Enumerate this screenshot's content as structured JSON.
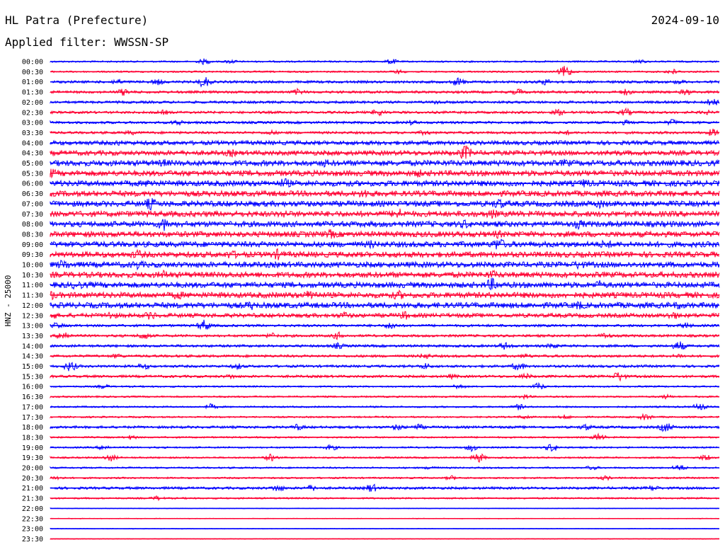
{
  "header": {
    "station": "HL Patra (Prefecture)",
    "date": "2024-09-10",
    "filter_label": "Applied filter: WWSSN-SP"
  },
  "chart_data": {
    "type": "line",
    "title": "HL Patra (Prefecture)",
    "subtitle": "Applied filter: WWSSN-SP",
    "ylabel": "HNZ - 25000",
    "colors": {
      "even_row": "#0000ff",
      "odd_row": "#ff0033"
    },
    "rows": [
      {
        "label": "00:00",
        "level": 1,
        "events": [
          [
            0.23,
            4
          ],
          [
            0.27,
            3
          ],
          [
            0.51,
            4
          ],
          [
            0.88,
            3
          ]
        ]
      },
      {
        "label": "00:30",
        "level": 1,
        "events": [
          [
            0.52,
            3
          ],
          [
            0.77,
            9
          ],
          [
            0.93,
            4
          ]
        ]
      },
      {
        "label": "01:00",
        "level": 2,
        "events": [
          [
            0.1,
            4
          ],
          [
            0.16,
            4
          ],
          [
            0.23,
            8
          ],
          [
            0.61,
            6
          ],
          [
            0.74,
            4
          ],
          [
            0.94,
            3
          ]
        ]
      },
      {
        "label": "01:30",
        "level": 2,
        "events": [
          [
            0.11,
            5
          ],
          [
            0.37,
            4
          ],
          [
            0.7,
            4
          ],
          [
            0.86,
            4
          ],
          [
            0.95,
            4
          ]
        ]
      },
      {
        "label": "02:00",
        "level": 2,
        "events": [
          [
            0.58,
            3
          ],
          [
            0.99,
            6
          ]
        ]
      },
      {
        "label": "02:30",
        "level": 2,
        "events": [
          [
            0.17,
            3
          ],
          [
            0.49,
            5
          ],
          [
            0.76,
            4
          ],
          [
            0.86,
            5
          ],
          [
            0.98,
            3
          ]
        ]
      },
      {
        "label": "03:00",
        "level": 2,
        "events": [
          [
            0.19,
            4
          ],
          [
            0.54,
            3
          ],
          [
            0.86,
            3
          ],
          [
            0.93,
            4
          ]
        ]
      },
      {
        "label": "03:30",
        "level": 2,
        "events": [
          [
            0.12,
            3
          ],
          [
            0.33,
            3
          ],
          [
            0.56,
            3
          ],
          [
            0.77,
            3
          ],
          [
            0.99,
            5
          ]
        ]
      },
      {
        "label": "04:00",
        "level": 4,
        "events": [
          [
            0.1,
            3
          ]
        ]
      },
      {
        "label": "04:30",
        "level": 5,
        "events": [
          [
            0.27,
            4
          ],
          [
            0.62,
            10
          ],
          [
            0.84,
            4
          ]
        ]
      },
      {
        "label": "05:00",
        "level": 6,
        "events": [
          [
            0.17,
            4
          ],
          [
            0.41,
            4
          ],
          [
            0.77,
            4
          ]
        ]
      },
      {
        "label": "05:30",
        "level": 6,
        "events": [
          [
            0.0,
            6
          ],
          [
            0.55,
            4
          ]
        ]
      },
      {
        "label": "06:00",
        "level": 6,
        "events": [
          [
            0.15,
            5
          ],
          [
            0.35,
            6
          ],
          [
            0.8,
            5
          ]
        ]
      },
      {
        "label": "06:30",
        "level": 6,
        "events": [
          [
            0.47,
            5
          ]
        ]
      },
      {
        "label": "07:00",
        "level": 6,
        "events": [
          [
            0.15,
            7
          ],
          [
            0.67,
            6
          ],
          [
            0.82,
            5
          ]
        ]
      },
      {
        "label": "07:30",
        "level": 6,
        "events": [
          [
            0.35,
            4
          ],
          [
            0.52,
            7
          ],
          [
            0.66,
            5
          ]
        ]
      },
      {
        "label": "08:00",
        "level": 6,
        "events": [
          [
            0.17,
            8
          ],
          [
            0.62,
            5
          ],
          [
            0.79,
            5
          ]
        ]
      },
      {
        "label": "08:30",
        "level": 6,
        "events": [
          [
            0.42,
            5
          ],
          [
            0.67,
            4
          ]
        ]
      },
      {
        "label": "09:00",
        "level": 6,
        "events": [
          [
            0.48,
            4
          ],
          [
            0.67,
            8
          ],
          [
            0.83,
            5
          ]
        ]
      },
      {
        "label": "09:30",
        "level": 6,
        "events": [
          [
            0.13,
            5
          ],
          [
            0.27,
            5
          ],
          [
            0.34,
            6
          ]
        ]
      },
      {
        "label": "10:00",
        "level": 6,
        "events": [
          [
            0.02,
            6
          ],
          [
            0.13,
            5
          ],
          [
            0.79,
            5
          ]
        ]
      },
      {
        "label": "10:30",
        "level": 6,
        "events": [
          [
            0.17,
            5
          ],
          [
            0.66,
            5
          ]
        ]
      },
      {
        "label": "11:00",
        "level": 6,
        "events": [
          [
            0.04,
            5
          ],
          [
            0.66,
            8
          ],
          [
            0.82,
            5
          ]
        ]
      },
      {
        "label": "11:30",
        "level": 6,
        "events": [
          [
            0.0,
            6
          ],
          [
            0.19,
            5
          ],
          [
            0.39,
            7
          ],
          [
            0.52,
            5
          ]
        ]
      },
      {
        "label": "12:00",
        "level": 6,
        "events": [
          [
            0.3,
            5
          ],
          [
            0.79,
            5
          ],
          [
            0.94,
            4
          ]
        ]
      },
      {
        "label": "12:30",
        "level": 4,
        "events": [
          [
            0.0,
            6
          ],
          [
            0.09,
            5
          ],
          [
            0.15,
            5
          ],
          [
            0.44,
            4
          ],
          [
            0.53,
            5
          ],
          [
            0.93,
            5
          ]
        ]
      },
      {
        "label": "13:00",
        "level": 2,
        "events": [
          [
            0.01,
            4
          ],
          [
            0.23,
            8
          ],
          [
            0.51,
            5
          ],
          [
            0.95,
            4
          ]
        ]
      },
      {
        "label": "13:30",
        "level": 2,
        "events": [
          [
            0.02,
            7
          ],
          [
            0.14,
            5
          ],
          [
            0.33,
            4
          ],
          [
            0.43,
            5
          ],
          [
            0.83,
            4
          ]
        ]
      },
      {
        "label": "14:00",
        "level": 2,
        "events": [
          [
            0.43,
            4
          ],
          [
            0.68,
            5
          ],
          [
            0.75,
            4
          ],
          [
            0.94,
            7
          ]
        ]
      },
      {
        "label": "14:30",
        "level": 2,
        "events": [
          [
            0.1,
            3
          ],
          [
            0.56,
            4
          ],
          [
            0.71,
            3
          ],
          [
            0.94,
            3
          ]
        ]
      },
      {
        "label": "15:00",
        "level": 2,
        "events": [
          [
            0.03,
            7
          ],
          [
            0.14,
            4
          ],
          [
            0.28,
            4
          ],
          [
            0.56,
            4
          ],
          [
            0.7,
            6
          ]
        ]
      },
      {
        "label": "15:30",
        "level": 2,
        "events": [
          [
            0.27,
            3
          ],
          [
            0.6,
            3
          ],
          [
            0.71,
            4
          ],
          [
            0.85,
            7
          ]
        ]
      },
      {
        "label": "16:00",
        "level": 1,
        "events": [
          [
            0.08,
            3
          ],
          [
            0.61,
            4
          ],
          [
            0.73,
            5
          ]
        ]
      },
      {
        "label": "16:30",
        "level": 1,
        "events": [
          [
            0.71,
            3
          ],
          [
            0.92,
            3
          ]
        ]
      },
      {
        "label": "17:00",
        "level": 1,
        "events": [
          [
            0.24,
            4
          ],
          [
            0.7,
            4
          ],
          [
            0.97,
            5
          ]
        ]
      },
      {
        "label": "17:30",
        "level": 1,
        "events": [
          [
            0.71,
            3
          ],
          [
            0.77,
            3
          ],
          [
            0.89,
            5
          ]
        ]
      },
      {
        "label": "18:00",
        "level": 2,
        "events": [
          [
            0.37,
            4
          ],
          [
            0.52,
            4
          ],
          [
            0.55,
            4
          ],
          [
            0.8,
            4
          ],
          [
            0.92,
            7
          ]
        ]
      },
      {
        "label": "18:30",
        "level": 1,
        "events": [
          [
            0.12,
            3
          ],
          [
            0.82,
            5
          ]
        ]
      },
      {
        "label": "19:00",
        "level": 1,
        "events": [
          [
            0.08,
            4
          ],
          [
            0.42,
            4
          ],
          [
            0.63,
            5
          ],
          [
            0.75,
            6
          ]
        ]
      },
      {
        "label": "19:30",
        "level": 1,
        "events": [
          [
            0.09,
            5
          ],
          [
            0.33,
            5
          ],
          [
            0.64,
            7
          ],
          [
            0.98,
            5
          ]
        ]
      },
      {
        "label": "20:00",
        "level": 1,
        "events": [
          [
            0.57,
            3
          ],
          [
            0.81,
            3
          ],
          [
            0.94,
            5
          ]
        ]
      },
      {
        "label": "20:30",
        "level": 1,
        "events": [
          [
            0.01,
            3
          ],
          [
            0.6,
            3
          ],
          [
            0.83,
            3
          ]
        ]
      },
      {
        "label": "21:00",
        "level": 2,
        "events": [
          [
            0.34,
            5
          ],
          [
            0.39,
            4
          ],
          [
            0.48,
            6
          ],
          [
            0.9,
            4
          ]
        ]
      },
      {
        "label": "21:30",
        "level": 1,
        "events": [
          [
            0.16,
            3
          ]
        ]
      },
      {
        "label": "22:00",
        "level": 0,
        "events": []
      },
      {
        "label": "22:30",
        "level": 0,
        "events": []
      },
      {
        "label": "23:00",
        "level": 0,
        "events": []
      },
      {
        "label": "23:30",
        "level": 0,
        "events": []
      }
    ]
  }
}
